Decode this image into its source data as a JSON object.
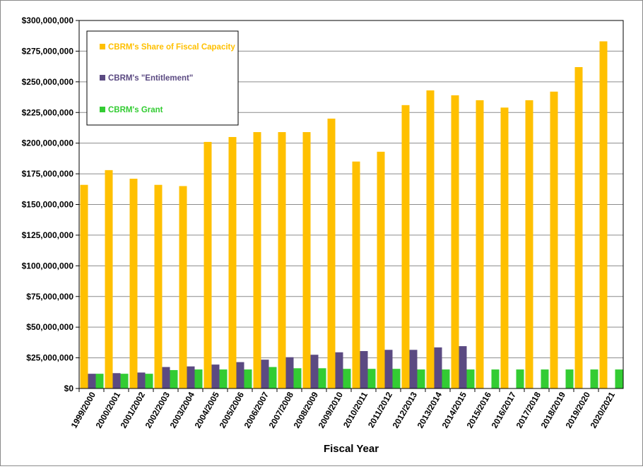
{
  "chart_data": {
    "type": "bar",
    "title": "",
    "xlabel": "Fiscal Year",
    "ylabel": "",
    "ylim": [
      0,
      300000000
    ],
    "yticks": [
      0,
      25000000,
      50000000,
      75000000,
      100000000,
      125000000,
      150000000,
      175000000,
      200000000,
      225000000,
      250000000,
      275000000,
      300000000
    ],
    "ytick_labels": [
      "$0",
      "$25,000,000",
      "$50,000,000",
      "$75,000,000",
      "$100,000,000",
      "$125,000,000",
      "$150,000,000",
      "$175,000,000",
      "$200,000,000",
      "$225,000,000",
      "$250,000,000",
      "$275,000,000",
      "$300,000,000"
    ],
    "grid": "horizontal",
    "legend_position": "top-left",
    "categories": [
      "1999/2000",
      "2000/2001",
      "2001/2002",
      "2002/2003",
      "2003/2004",
      "2004/2005",
      "2005/2006",
      "2006/2007",
      "2007/2008",
      "2008/2009",
      "2009/2010",
      "2010/2011",
      "2011/2012",
      "2012/2013",
      "2013/2014",
      "2014/2015",
      "2015/2016",
      "2016/2017",
      "2017/2018",
      "2018/2019",
      "2019/2020",
      "2020/2021"
    ],
    "series": [
      {
        "name": "CBRM's Share of Fiscal Capacity",
        "color": "#FFC000",
        "values": [
          166000000,
          178000000,
          171000000,
          166000000,
          165000000,
          201000000,
          205000000,
          209000000,
          209000000,
          209000000,
          220000000,
          185000000,
          193000000,
          231000000,
          243000000,
          239000000,
          235000000,
          229000000,
          235000000,
          242000000,
          262000000,
          283000000
        ]
      },
      {
        "name": "CBRM's \"Entitlement\"",
        "color": "#5B4A82",
        "values": [
          12000000,
          12500000,
          13000000,
          17500000,
          18000000,
          19500000,
          21500000,
          23500000,
          25500000,
          27500000,
          29500000,
          30500000,
          31500000,
          31500000,
          33500000,
          34500000,
          null,
          null,
          null,
          null,
          null,
          null
        ]
      },
      {
        "name": "CBRM's Grant",
        "color": "#33CC33",
        "values": [
          12000000,
          12000000,
          12000000,
          15000000,
          15500000,
          15500000,
          15500000,
          17500000,
          16500000,
          16500000,
          16000000,
          16000000,
          16000000,
          15500000,
          15500000,
          15500000,
          15500000,
          15500000,
          15500000,
          15500000,
          15500000,
          15500000
        ]
      }
    ]
  }
}
